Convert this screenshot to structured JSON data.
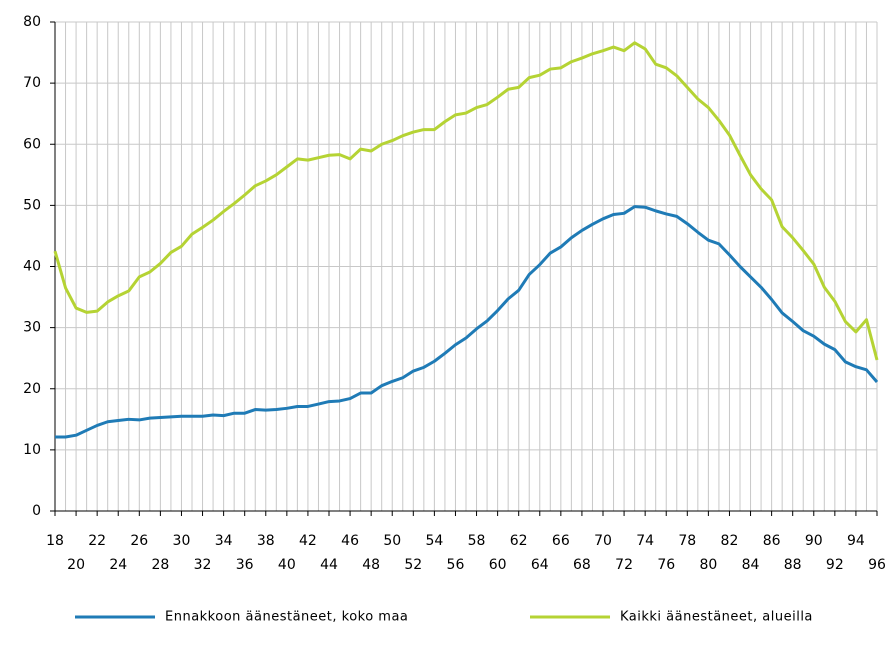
{
  "chart_data": {
    "type": "line",
    "x": [
      18,
      19,
      20,
      21,
      22,
      23,
      24,
      25,
      26,
      27,
      28,
      29,
      30,
      31,
      32,
      33,
      34,
      35,
      36,
      37,
      38,
      39,
      40,
      41,
      42,
      43,
      44,
      45,
      46,
      47,
      48,
      49,
      50,
      51,
      52,
      53,
      54,
      55,
      56,
      57,
      58,
      59,
      60,
      61,
      62,
      63,
      64,
      65,
      66,
      67,
      68,
      69,
      70,
      71,
      72,
      73,
      74,
      75,
      76,
      77,
      78,
      79,
      80,
      81,
      82,
      83,
      84,
      85,
      86,
      87,
      88,
      89,
      90,
      91,
      92,
      93,
      94,
      95,
      96
    ],
    "series": [
      {
        "name": "Ennakkoon äänestäneet, koko maa",
        "color": "#1f7bb6",
        "values": [
          12.1,
          12.1,
          12.4,
          13.2,
          14.0,
          14.6,
          14.8,
          15.0,
          14.9,
          15.2,
          15.3,
          15.4,
          15.5,
          15.5,
          15.5,
          15.7,
          15.6,
          16.0,
          16.0,
          16.6,
          16.5,
          16.6,
          16.8,
          17.1,
          17.1,
          17.5,
          17.9,
          18.0,
          18.4,
          19.3,
          19.3,
          20.5,
          21.2,
          21.8,
          22.9,
          23.5,
          24.5,
          25.8,
          27.2,
          28.3,
          29.8,
          31.1,
          32.8,
          34.7,
          36.1,
          38.7,
          40.3,
          42.2,
          43.2,
          44.7,
          45.9,
          46.9,
          47.8,
          48.5,
          48.7,
          49.8,
          49.7,
          49.1,
          48.6,
          48.2,
          47.0,
          45.6,
          44.3,
          43.7,
          41.9,
          40.0,
          38.3,
          36.6,
          34.6,
          32.4,
          31.0,
          29.5,
          28.6,
          27.3,
          26.4,
          24.4,
          23.6,
          23.1,
          21.1
        ]
      },
      {
        "name": "Kaikki äänestäneet, alueilla",
        "color": "#b5d334",
        "values": [
          42.5,
          36.5,
          33.2,
          32.5,
          32.7,
          34.2,
          35.2,
          36.0,
          38.3,
          39.1,
          40.5,
          42.3,
          43.3,
          45.3,
          46.4,
          47.6,
          49.0,
          50.3,
          51.7,
          53.2,
          54.0,
          55.0,
          56.3,
          57.6,
          57.4,
          57.8,
          58.2,
          58.3,
          57.6,
          59.2,
          58.9,
          60.0,
          60.6,
          61.4,
          62.0,
          62.4,
          62.4,
          63.7,
          64.8,
          65.1,
          66.0,
          66.5,
          67.7,
          69.0,
          69.3,
          70.9,
          71.3,
          72.3,
          72.5,
          73.5,
          74.1,
          74.8,
          75.3,
          75.9,
          75.3,
          76.6,
          75.6,
          73.1,
          72.5,
          71.2,
          69.3,
          67.4,
          66.0,
          63.9,
          61.5,
          58.2,
          55.0,
          52.7,
          50.9,
          46.5,
          44.7,
          42.6,
          40.4,
          36.6,
          34.3,
          31.0,
          29.3,
          31.3,
          24.7
        ]
      }
    ],
    "xlim": [
      18,
      96
    ],
    "xticks": [
      18,
      20,
      22,
      24,
      26,
      28,
      30,
      32,
      34,
      36,
      38,
      40,
      42,
      44,
      46,
      48,
      50,
      52,
      54,
      56,
      58,
      60,
      62,
      64,
      66,
      68,
      70,
      72,
      74,
      76,
      78,
      80,
      82,
      84,
      86,
      88,
      90,
      92,
      94,
      96
    ],
    "ylim": [
      0,
      80
    ],
    "yticks": [
      0,
      10,
      20,
      30,
      40,
      50,
      60,
      70,
      80
    ],
    "grid": true,
    "legend": "bottom"
  }
}
